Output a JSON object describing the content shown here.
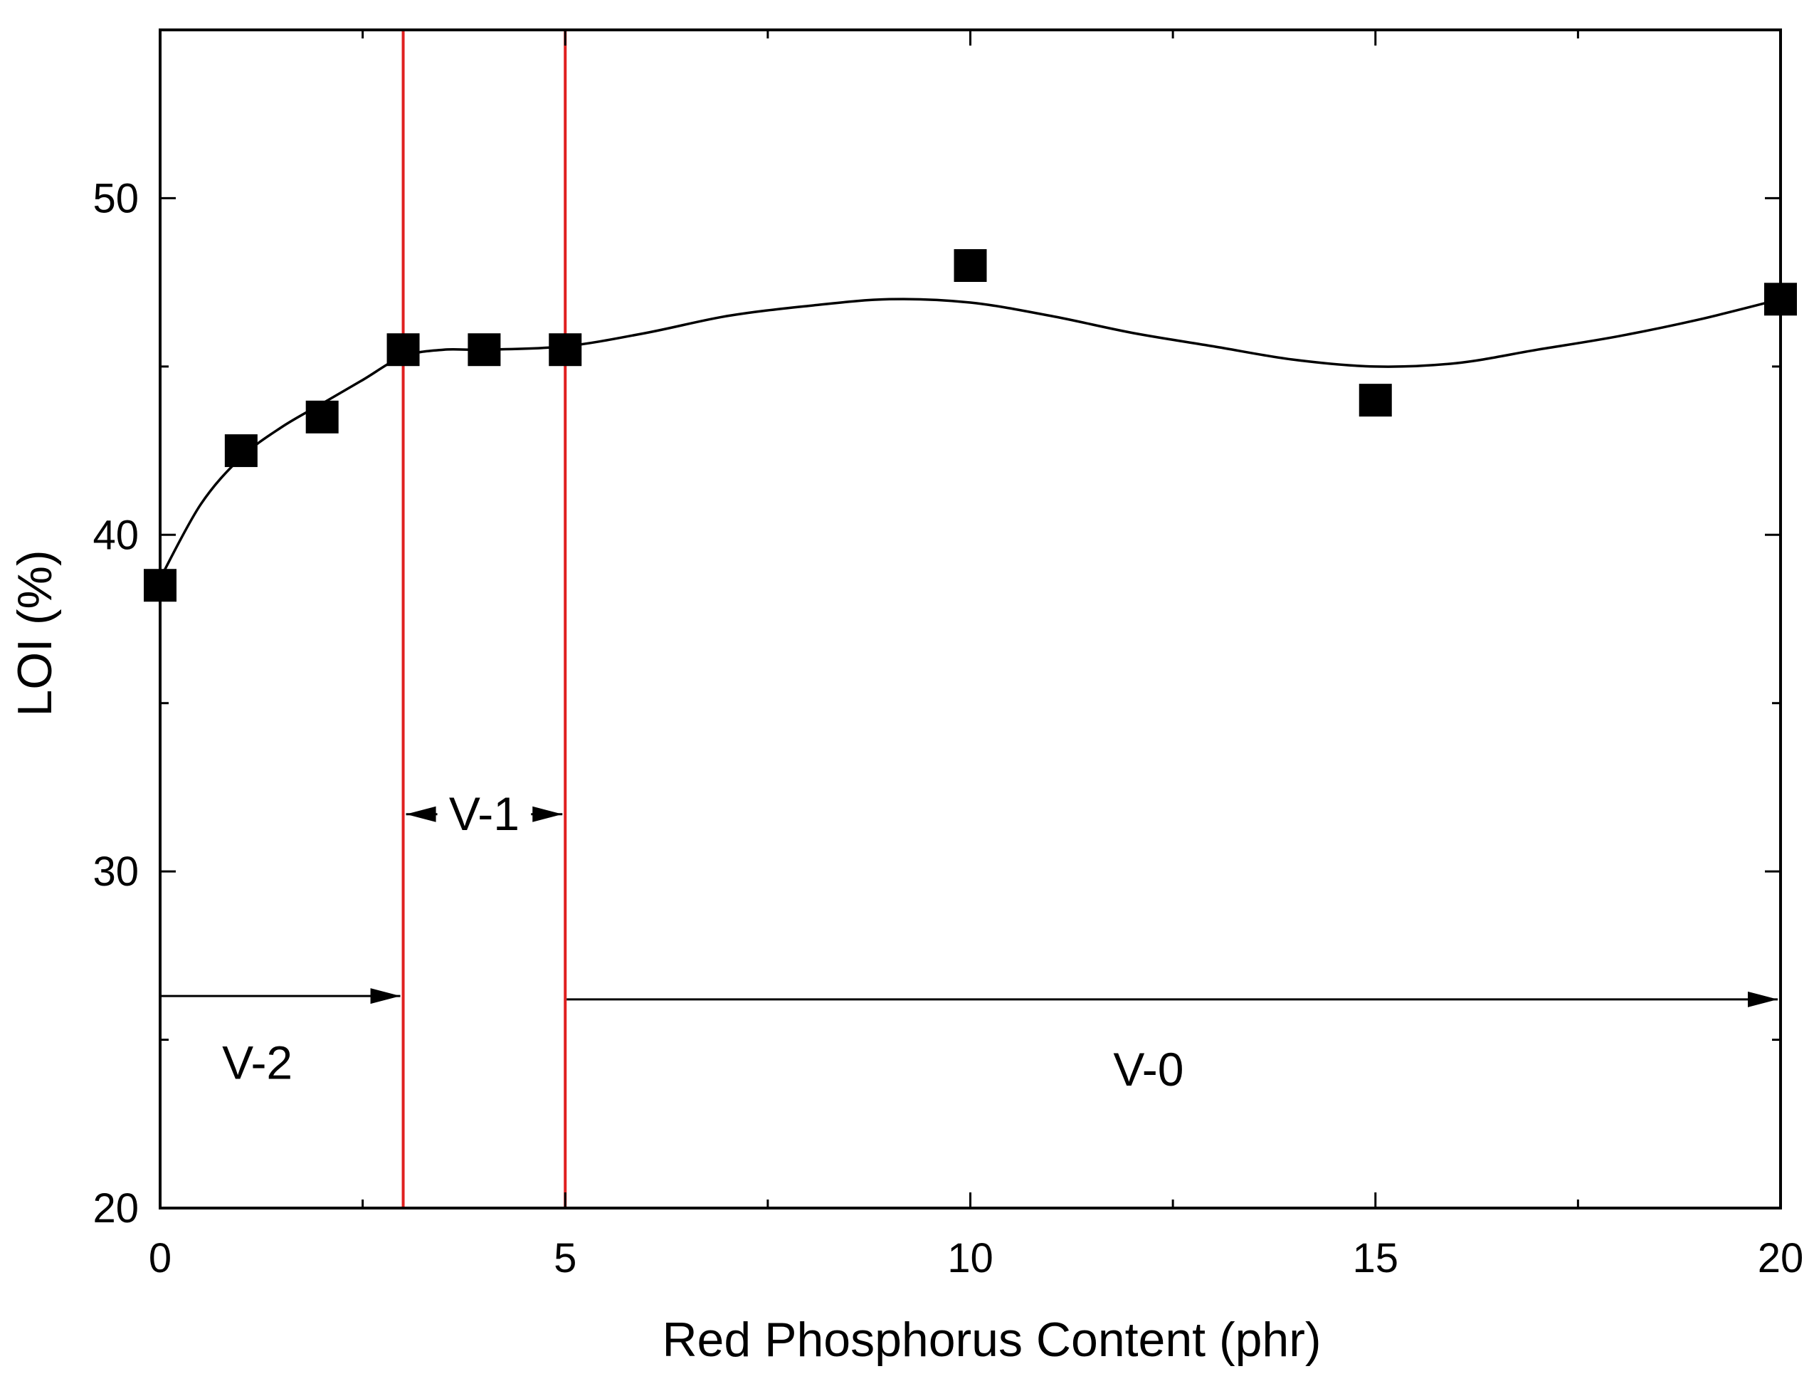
{
  "chart_data": {
    "type": "scatter",
    "title": "",
    "xlabel": "Red Phosphorus Content  (phr)",
    "ylabel": "LOI (%)",
    "xlim": [
      0,
      20
    ],
    "ylim": [
      20,
      55
    ],
    "x_ticks": [
      0,
      5,
      10,
      15,
      20
    ],
    "x_minor_ticks": [
      2.5,
      7.5,
      12.5,
      17.5
    ],
    "y_ticks": [
      20,
      30,
      40,
      50
    ],
    "y_minor_ticks": [
      25,
      35,
      45
    ],
    "series": [
      {
        "name": "LOI",
        "marker": "square",
        "x": [
          0,
          1,
          2,
          3,
          4,
          5,
          10,
          15,
          20
        ],
        "y": [
          38.5,
          42.5,
          43.5,
          45.5,
          45.5,
          45.5,
          48,
          44,
          47
        ]
      }
    ],
    "fit_curve": {
      "type": "smooth",
      "x": [
        0,
        0.5,
        1,
        1.5,
        2,
        2.5,
        3,
        3.5,
        4,
        5,
        6,
        7,
        8,
        9,
        10,
        11,
        12,
        13,
        14,
        15,
        16,
        17,
        18,
        19,
        20
      ],
      "y": [
        38.7,
        40.9,
        42.3,
        43.2,
        43.9,
        44.6,
        45.3,
        45.5,
        45.5,
        45.6,
        46.0,
        46.5,
        46.8,
        47.0,
        46.9,
        46.5,
        46.0,
        45.6,
        45.2,
        45.0,
        45.1,
        45.5,
        45.9,
        46.4,
        47.0
      ]
    },
    "reference_lines": [
      {
        "x": 3,
        "color": "#e02020"
      },
      {
        "x": 5,
        "color": "#e02020"
      }
    ],
    "annotations": [
      {
        "label": "V-2",
        "x_from": 0,
        "x_to": 3,
        "arrow_y": 26.3,
        "label_x": 1.2,
        "label_y": 24.3
      },
      {
        "label": "V-1",
        "x_from": 3,
        "x_to": 5,
        "arrow_y": 31.7,
        "label_x": 4.0,
        "label_y": 31.7
      },
      {
        "label": "V-0",
        "x_from": 5,
        "x_to": 20,
        "arrow_y": 26.2,
        "label_x": 12.2,
        "label_y": 24.1
      }
    ]
  }
}
